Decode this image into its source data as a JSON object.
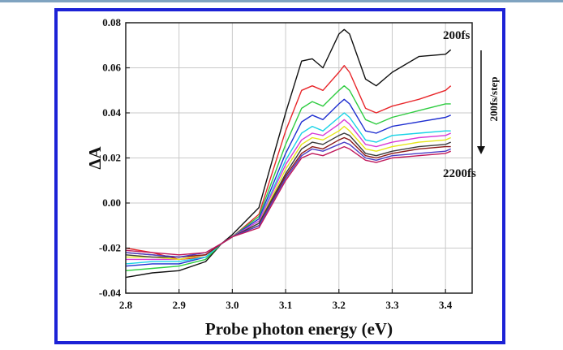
{
  "chart_data": {
    "type": "line",
    "title": "",
    "xlabel": "Probe photon energy (eV)",
    "ylabel": "ΔA",
    "xlim": [
      2.8,
      3.45
    ],
    "ylim": [
      -0.04,
      0.08
    ],
    "xticks": [
      2.8,
      2.9,
      3.0,
      3.1,
      3.2,
      3.3,
      3.4
    ],
    "xtick_labels": [
      "2.8",
      "2.9",
      "3.0",
      "3.1",
      "3.2",
      "3.3",
      "3.4"
    ],
    "yticks": [
      -0.04,
      -0.02,
      0.0,
      0.02,
      0.04,
      0.06,
      0.08
    ],
    "ytick_labels": [
      "-0.04",
      "-0.02",
      "0.00",
      "0.02",
      "0.04",
      "0.06",
      "0.08"
    ],
    "grid": true,
    "annotations": {
      "first_delay": "200fs",
      "last_delay": "2200fs",
      "step": "200fs/step"
    },
    "series": [
      {
        "color": "#111111",
        "x": [
          2.8,
          2.85,
          2.9,
          2.95,
          2.98,
          3.0,
          3.05,
          3.1,
          3.13,
          3.15,
          3.17,
          3.2,
          3.21,
          3.22,
          3.25,
          3.27,
          3.3,
          3.35,
          3.4,
          3.41
        ],
        "y": [
          -0.033,
          -0.031,
          -0.03,
          -0.026,
          -0.018,
          -0.014,
          -0.002,
          0.04,
          0.063,
          0.064,
          0.06,
          0.075,
          0.077,
          0.075,
          0.055,
          0.052,
          0.058,
          0.065,
          0.066,
          0.068
        ]
      },
      {
        "color": "#e8262a",
        "x": [
          2.8,
          2.85,
          2.9,
          2.95,
          2.98,
          3.0,
          3.05,
          3.1,
          3.13,
          3.15,
          3.17,
          3.2,
          3.21,
          3.22,
          3.25,
          3.27,
          3.3,
          3.35,
          3.4,
          3.41
        ],
        "y": [
          -0.02,
          -0.022,
          -0.025,
          -0.024,
          -0.018,
          -0.015,
          -0.005,
          0.032,
          0.05,
          0.052,
          0.05,
          0.058,
          0.061,
          0.058,
          0.042,
          0.04,
          0.043,
          0.046,
          0.05,
          0.052
        ]
      },
      {
        "color": "#2ecc40",
        "x": [
          2.8,
          2.85,
          2.9,
          2.95,
          2.98,
          3.0,
          3.05,
          3.1,
          3.13,
          3.15,
          3.17,
          3.2,
          3.21,
          3.22,
          3.25,
          3.27,
          3.3,
          3.35,
          3.4,
          3.41
        ],
        "y": [
          -0.03,
          -0.029,
          -0.028,
          -0.025,
          -0.018,
          -0.015,
          -0.006,
          0.026,
          0.042,
          0.045,
          0.043,
          0.05,
          0.052,
          0.05,
          0.037,
          0.035,
          0.038,
          0.041,
          0.044,
          0.044
        ]
      },
      {
        "color": "#1f2fd0",
        "x": [
          2.8,
          2.85,
          2.9,
          2.95,
          2.98,
          3.0,
          3.05,
          3.1,
          3.13,
          3.15,
          3.17,
          3.2,
          3.21,
          3.22,
          3.25,
          3.27,
          3.3,
          3.35,
          3.4,
          3.41
        ],
        "y": [
          -0.028,
          -0.027,
          -0.027,
          -0.024,
          -0.018,
          -0.015,
          -0.007,
          0.022,
          0.036,
          0.039,
          0.037,
          0.044,
          0.046,
          0.044,
          0.032,
          0.031,
          0.034,
          0.036,
          0.038,
          0.039
        ]
      },
      {
        "color": "#19d3e6",
        "x": [
          2.8,
          2.85,
          2.9,
          2.95,
          2.98,
          3.0,
          3.05,
          3.1,
          3.13,
          3.15,
          3.17,
          3.2,
          3.21,
          3.22,
          3.25,
          3.27,
          3.3,
          3.35,
          3.4,
          3.41
        ],
        "y": [
          -0.027,
          -0.026,
          -0.026,
          -0.024,
          -0.018,
          -0.015,
          -0.008,
          0.019,
          0.031,
          0.034,
          0.032,
          0.038,
          0.04,
          0.038,
          0.028,
          0.027,
          0.03,
          0.031,
          0.032,
          0.032
        ]
      },
      {
        "color": "#d63ad6",
        "x": [
          2.8,
          2.85,
          2.9,
          2.95,
          2.98,
          3.0,
          3.05,
          3.1,
          3.13,
          3.15,
          3.17,
          3.2,
          3.21,
          3.22,
          3.25,
          3.27,
          3.3,
          3.35,
          3.4,
          3.41
        ],
        "y": [
          -0.025,
          -0.025,
          -0.025,
          -0.023,
          -0.018,
          -0.015,
          -0.008,
          0.017,
          0.028,
          0.031,
          0.03,
          0.035,
          0.037,
          0.035,
          0.026,
          0.025,
          0.027,
          0.029,
          0.03,
          0.031
        ]
      },
      {
        "color": "#e6e619",
        "x": [
          2.8,
          2.85,
          2.9,
          2.95,
          2.98,
          3.0,
          3.05,
          3.1,
          3.13,
          3.15,
          3.17,
          3.2,
          3.21,
          3.22,
          3.25,
          3.27,
          3.3,
          3.35,
          3.4,
          3.41
        ],
        "y": [
          -0.024,
          -0.024,
          -0.025,
          -0.023,
          -0.018,
          -0.015,
          -0.009,
          0.015,
          0.026,
          0.029,
          0.028,
          0.032,
          0.034,
          0.032,
          0.024,
          0.023,
          0.025,
          0.027,
          0.028,
          0.029
        ]
      },
      {
        "color": "#3a3a3a",
        "x": [
          2.8,
          2.85,
          2.9,
          2.95,
          2.98,
          3.0,
          3.05,
          3.1,
          3.13,
          3.15,
          3.17,
          3.2,
          3.21,
          3.22,
          3.25,
          3.27,
          3.3,
          3.35,
          3.4,
          3.41
        ],
        "y": [
          -0.023,
          -0.024,
          -0.024,
          -0.023,
          -0.018,
          -0.015,
          -0.009,
          0.013,
          0.024,
          0.027,
          0.026,
          0.03,
          0.031,
          0.03,
          0.022,
          0.021,
          0.023,
          0.025,
          0.026,
          0.027
        ]
      },
      {
        "color": "#8b1a1a",
        "x": [
          2.8,
          2.85,
          2.9,
          2.95,
          2.98,
          3.0,
          3.05,
          3.1,
          3.13,
          3.15,
          3.17,
          3.2,
          3.21,
          3.22,
          3.25,
          3.27,
          3.3,
          3.35,
          3.4,
          3.41
        ],
        "y": [
          -0.022,
          -0.023,
          -0.024,
          -0.023,
          -0.018,
          -0.015,
          -0.01,
          0.012,
          0.022,
          0.025,
          0.024,
          0.028,
          0.029,
          0.028,
          0.021,
          0.02,
          0.022,
          0.024,
          0.025,
          0.025
        ]
      },
      {
        "color": "#4a3fc6",
        "x": [
          2.8,
          2.85,
          2.9,
          2.95,
          2.98,
          3.0,
          3.05,
          3.1,
          3.13,
          3.15,
          3.17,
          3.2,
          3.21,
          3.22,
          3.25,
          3.27,
          3.3,
          3.35,
          3.4,
          3.41
        ],
        "y": [
          -0.022,
          -0.023,
          -0.024,
          -0.022,
          -0.018,
          -0.015,
          -0.01,
          0.011,
          0.021,
          0.024,
          0.023,
          0.026,
          0.027,
          0.026,
          0.02,
          0.019,
          0.021,
          0.022,
          0.023,
          0.024
        ]
      },
      {
        "color": "#c0185a",
        "x": [
          2.8,
          2.85,
          2.9,
          2.95,
          2.98,
          3.0,
          3.05,
          3.1,
          3.13,
          3.15,
          3.17,
          3.2,
          3.21,
          3.22,
          3.25,
          3.27,
          3.3,
          3.35,
          3.4,
          3.41
        ],
        "y": [
          -0.021,
          -0.022,
          -0.023,
          -0.022,
          -0.018,
          -0.015,
          -0.011,
          0.01,
          0.02,
          0.022,
          0.021,
          0.024,
          0.025,
          0.024,
          0.019,
          0.018,
          0.02,
          0.021,
          0.022,
          0.023
        ]
      }
    ]
  }
}
